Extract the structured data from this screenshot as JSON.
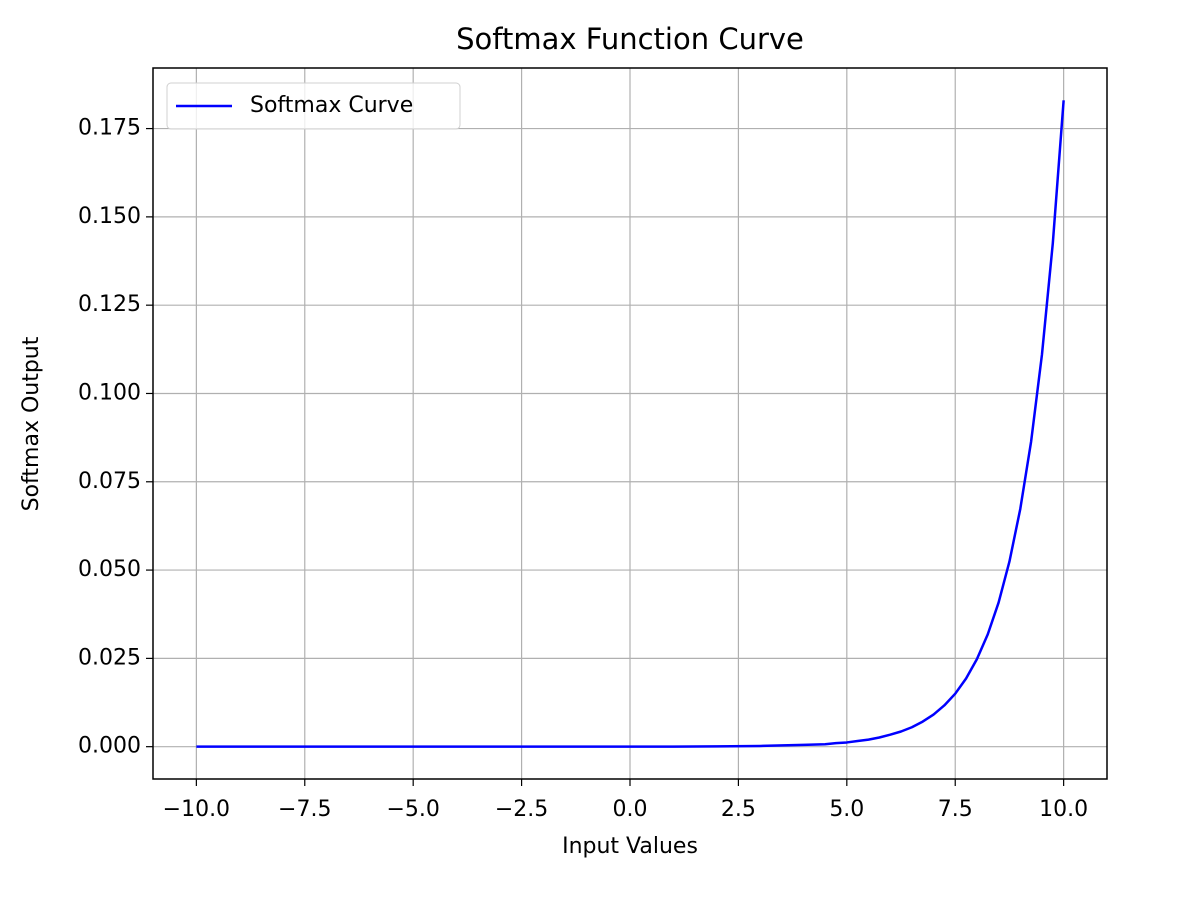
{
  "chart_data": {
    "type": "line",
    "title": "Softmax Function Curve",
    "xlabel": "Input Values",
    "ylabel": "Softmax Output",
    "x": [
      -10,
      -9,
      -8,
      -7,
      -6,
      -5,
      -4,
      -3,
      -2,
      -1,
      0,
      1,
      2,
      3,
      4,
      4.5,
      4.75,
      5,
      5.25,
      5.5,
      5.75,
      6,
      6.25,
      6.5,
      6.75,
      7,
      7.25,
      7.5,
      7.75,
      8,
      8.25,
      8.5,
      8.75,
      9,
      9.25,
      9.5,
      9.75,
      10
    ],
    "series": [
      {
        "name": "Softmax Curve",
        "color": "#0000ff",
        "values": [
          0,
          0,
          0,
          0,
          0,
          0,
          0,
          0,
          0,
          0,
          0,
          0,
          0.0001,
          0.0002,
          0.0005,
          0.0007,
          0.001,
          0.0012,
          0.0016,
          0.002,
          0.0026,
          0.0034,
          0.0043,
          0.0055,
          0.0071,
          0.0091,
          0.0117,
          0.015,
          0.0193,
          0.0248,
          0.0318,
          0.0408,
          0.0524,
          0.0673,
          0.0864,
          0.111,
          0.1425,
          0.183
        ]
      }
    ],
    "xlim": [
      -11,
      11
    ],
    "ylim": [
      -0.00915,
      0.19215
    ],
    "xticks": [
      {
        "value": -10,
        "label": "−10.0"
      },
      {
        "value": -7.5,
        "label": "−7.5"
      },
      {
        "value": -5,
        "label": "−5.0"
      },
      {
        "value": -2.5,
        "label": "−2.5"
      },
      {
        "value": 0,
        "label": "0.0"
      },
      {
        "value": 2.5,
        "label": "2.5"
      },
      {
        "value": 5,
        "label": "5.0"
      },
      {
        "value": 7.5,
        "label": "7.5"
      },
      {
        "value": 10,
        "label": "10.0"
      }
    ],
    "yticks": [
      {
        "value": 0,
        "label": "0.000"
      },
      {
        "value": 0.025,
        "label": "0.025"
      },
      {
        "value": 0.05,
        "label": "0.050"
      },
      {
        "value": 0.075,
        "label": "0.075"
      },
      {
        "value": 0.1,
        "label": "0.100"
      },
      {
        "value": 0.125,
        "label": "0.125"
      },
      {
        "value": 0.15,
        "label": "0.150"
      },
      {
        "value": 0.175,
        "label": "0.175"
      }
    ],
    "grid": true,
    "legend": "upper left"
  }
}
